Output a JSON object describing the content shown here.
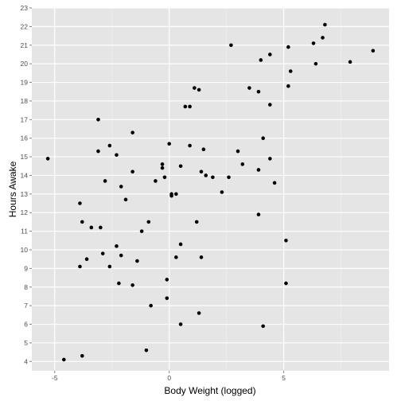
{
  "chart_data": {
    "type": "scatter",
    "title": "",
    "xlabel": "Body Weight (logged)",
    "ylabel": "Hours Awake",
    "xlim": [
      -6.0,
      9.6
    ],
    "ylim": [
      3.5,
      23.0
    ],
    "xticks": [
      -5,
      0,
      5
    ],
    "xtick_labels": [
      "-5",
      "0",
      "5"
    ],
    "yticks": [
      4,
      5,
      6,
      7,
      8,
      9,
      10,
      11,
      12,
      13,
      14,
      15,
      16,
      17,
      18,
      19,
      20,
      21,
      22,
      23
    ],
    "ytick_labels": [
      "4",
      "5",
      "6",
      "7",
      "8",
      "9",
      "10",
      "11",
      "12",
      "13",
      "14",
      "15",
      "16",
      "17",
      "18",
      "19",
      "20",
      "21",
      "22",
      "23"
    ],
    "grid": true,
    "legend": "none",
    "colors": {
      "panel": "#e5e5e5",
      "grid_major": "#ffffff",
      "grid_minor": "#f0f0f0",
      "point": "#000000",
      "tick": "#7f7f7f"
    },
    "points": [
      {
        "x": -5.3,
        "y": 14.9
      },
      {
        "x": -4.6,
        "y": 4.1
      },
      {
        "x": -3.8,
        "y": 4.3
      },
      {
        "x": -3.9,
        "y": 12.5
      },
      {
        "x": -3.8,
        "y": 11.5
      },
      {
        "x": -3.6,
        "y": 9.5
      },
      {
        "x": -3.4,
        "y": 11.2
      },
      {
        "x": -3.9,
        "y": 9.1
      },
      {
        "x": -3.1,
        "y": 17.0
      },
      {
        "x": -3.1,
        "y": 15.3
      },
      {
        "x": -3.0,
        "y": 11.2
      },
      {
        "x": -2.9,
        "y": 9.8
      },
      {
        "x": -2.8,
        "y": 13.7
      },
      {
        "x": -2.6,
        "y": 15.6
      },
      {
        "x": -2.6,
        "y": 9.1
      },
      {
        "x": -2.3,
        "y": 15.1
      },
      {
        "x": -2.3,
        "y": 10.2
      },
      {
        "x": -2.2,
        "y": 8.2
      },
      {
        "x": -2.1,
        "y": 13.4
      },
      {
        "x": -2.1,
        "y": 9.7
      },
      {
        "x": -1.9,
        "y": 12.7
      },
      {
        "x": -1.6,
        "y": 16.3
      },
      {
        "x": -1.6,
        "y": 14.2
      },
      {
        "x": -1.6,
        "y": 8.1
      },
      {
        "x": -1.4,
        "y": 9.4
      },
      {
        "x": -1.2,
        "y": 11.0
      },
      {
        "x": -1.0,
        "y": 4.6
      },
      {
        "x": -0.9,
        "y": 11.5
      },
      {
        "x": -0.8,
        "y": 7.0
      },
      {
        "x": -0.6,
        "y": 13.7
      },
      {
        "x": -0.3,
        "y": 14.6
      },
      {
        "x": -0.3,
        "y": 14.4
      },
      {
        "x": -0.2,
        "y": 13.9
      },
      {
        "x": -0.1,
        "y": 8.4
      },
      {
        "x": -0.1,
        "y": 7.4
      },
      {
        "x": 0.0,
        "y": 15.7
      },
      {
        "x": 0.1,
        "y": 13.0
      },
      {
        "x": 0.1,
        "y": 12.9
      },
      {
        "x": 0.3,
        "y": 13.0
      },
      {
        "x": 0.3,
        "y": 9.6
      },
      {
        "x": 0.5,
        "y": 14.5
      },
      {
        "x": 0.5,
        "y": 10.3
      },
      {
        "x": 0.5,
        "y": 6.0
      },
      {
        "x": 0.7,
        "y": 17.7
      },
      {
        "x": 0.9,
        "y": 17.7
      },
      {
        "x": 0.9,
        "y": 15.6
      },
      {
        "x": 1.1,
        "y": 18.7
      },
      {
        "x": 1.2,
        "y": 11.5
      },
      {
        "x": 1.3,
        "y": 18.6
      },
      {
        "x": 1.3,
        "y": 6.6
      },
      {
        "x": 1.4,
        "y": 14.2
      },
      {
        "x": 1.4,
        "y": 9.6
      },
      {
        "x": 1.5,
        "y": 15.4
      },
      {
        "x": 1.6,
        "y": 14.0
      },
      {
        "x": 1.9,
        "y": 13.9
      },
      {
        "x": 2.3,
        "y": 13.1
      },
      {
        "x": 2.6,
        "y": 13.9
      },
      {
        "x": 2.7,
        "y": 21.0
      },
      {
        "x": 3.0,
        "y": 15.3
      },
      {
        "x": 3.2,
        "y": 14.6
      },
      {
        "x": 3.5,
        "y": 18.7
      },
      {
        "x": 3.9,
        "y": 18.5
      },
      {
        "x": 4.0,
        "y": 20.2
      },
      {
        "x": 3.9,
        "y": 14.3
      },
      {
        "x": 3.9,
        "y": 11.9
      },
      {
        "x": 4.1,
        "y": 16.0
      },
      {
        "x": 4.1,
        "y": 5.9
      },
      {
        "x": 4.4,
        "y": 20.5
      },
      {
        "x": 4.4,
        "y": 17.8
      },
      {
        "x": 4.4,
        "y": 14.9
      },
      {
        "x": 4.6,
        "y": 13.6
      },
      {
        "x": 5.1,
        "y": 10.5
      },
      {
        "x": 5.1,
        "y": 8.2
      },
      {
        "x": 5.2,
        "y": 20.9
      },
      {
        "x": 5.2,
        "y": 18.8
      },
      {
        "x": 5.3,
        "y": 19.6
      },
      {
        "x": 6.3,
        "y": 21.1
      },
      {
        "x": 6.4,
        "y": 20.0
      },
      {
        "x": 6.7,
        "y": 21.4
      },
      {
        "x": 6.8,
        "y": 22.1
      },
      {
        "x": 7.9,
        "y": 20.1
      },
      {
        "x": 8.9,
        "y": 20.7
      }
    ]
  }
}
